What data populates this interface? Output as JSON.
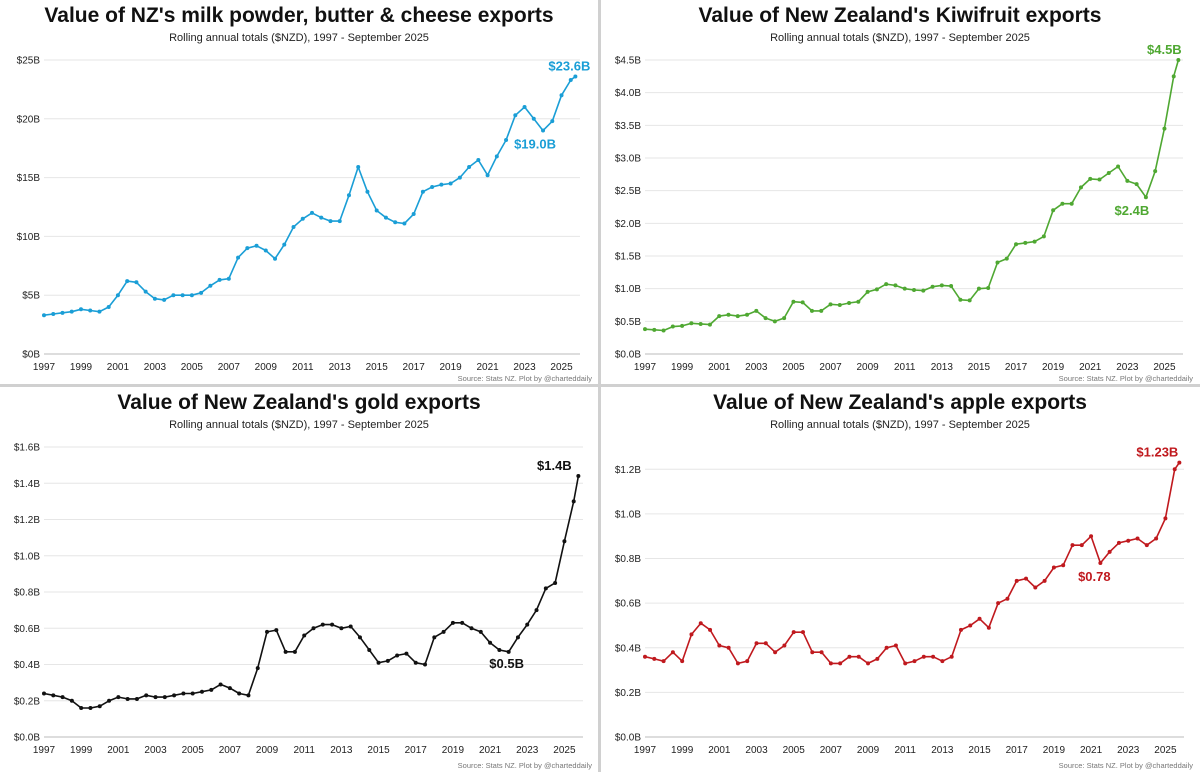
{
  "source_note": "Source: Stats NZ.  Plot by @charteddaily",
  "chart_data": [
    {
      "type": "line",
      "title": "Value of NZ's milk powder, butter & cheese exports",
      "subtitle": "Rolling annual totals ($NZD), 1997 - September 2025",
      "color": "#1a9ed6",
      "xlim": [
        1997,
        2026
      ],
      "ylim": [
        0,
        25
      ],
      "yticks": [
        0,
        5,
        10,
        15,
        20,
        25
      ],
      "ytick_labels": [
        "$0B",
        "$5B",
        "$10B",
        "$15B",
        "$20B",
        "$25B"
      ],
      "xtick_labels": [
        "1997",
        "1999",
        "2001",
        "2003",
        "2005",
        "2007",
        "2009",
        "2011",
        "2013",
        "2015",
        "2017",
        "2019",
        "2021",
        "2023",
        "2025"
      ],
      "x": [
        1997.0,
        1997.5,
        1998.0,
        1998.5,
        1999.0,
        1999.5,
        2000.0,
        2000.5,
        2001.0,
        2001.5,
        2002.0,
        2002.5,
        2003.0,
        2003.5,
        2004.0,
        2004.5,
        2005.0,
        2005.5,
        2006.0,
        2006.5,
        2007.0,
        2007.5,
        2008.0,
        2008.5,
        2009.0,
        2009.5,
        2010.0,
        2010.5,
        2011.0,
        2011.5,
        2012.0,
        2012.5,
        2013.0,
        2013.5,
        2014.0,
        2014.5,
        2015.0,
        2015.5,
        2016.0,
        2016.5,
        2017.0,
        2017.5,
        2018.0,
        2018.5,
        2019.0,
        2019.5,
        2020.0,
        2020.5,
        2021.0,
        2021.5,
        2022.0,
        2022.5,
        2023.0,
        2023.5,
        2024.0,
        2024.5,
        2025.0,
        2025.5,
        2025.75
      ],
      "values": [
        3.3,
        3.4,
        3.5,
        3.6,
        3.8,
        3.7,
        3.6,
        4.0,
        5.0,
        6.2,
        6.1,
        5.3,
        4.7,
        4.6,
        5.0,
        5.0,
        5.0,
        5.2,
        5.8,
        6.3,
        6.4,
        8.2,
        9.0,
        9.2,
        8.8,
        8.1,
        9.3,
        10.8,
        11.5,
        12.0,
        11.6,
        11.3,
        11.3,
        13.5,
        15.9,
        13.8,
        12.2,
        11.6,
        11.2,
        11.1,
        11.9,
        13.8,
        14.2,
        14.4,
        14.5,
        15.0,
        15.9,
        16.5,
        15.2,
        16.8,
        18.2,
        20.3,
        21.0,
        20.0,
        19.0,
        19.8,
        22.0,
        23.3,
        23.6
      ],
      "annotations": [
        {
          "text": "$23.6B",
          "x": 2025.75,
          "y": 23.6
        },
        {
          "text": "$19.0B",
          "x": 2024.0,
          "y": 19.0
        }
      ]
    },
    {
      "type": "line",
      "title": "Value of New Zealand's Kiwifruit exports",
      "subtitle": "Rolling annual totals ($NZD), 1997 - September  2025",
      "color": "#4fa832",
      "xlim": [
        1997,
        2026
      ],
      "ylim": [
        0,
        4.5
      ],
      "yticks": [
        0,
        0.5,
        1.0,
        1.5,
        2.0,
        2.5,
        3.0,
        3.5,
        4.0,
        4.5
      ],
      "ytick_labels": [
        "$0.0B",
        "$0.5B",
        "$1.0B",
        "$1.5B",
        "$2.0B",
        "$2.5B",
        "$3.0B",
        "$3.5B",
        "$4.0B",
        "$4.5B"
      ],
      "xtick_labels": [
        "1997",
        "1999",
        "2001",
        "2003",
        "2005",
        "2007",
        "2009",
        "2011",
        "2013",
        "2015",
        "2017",
        "2019",
        "2021",
        "2023",
        "2025"
      ],
      "x": [
        1997.0,
        1997.5,
        1998.0,
        1998.5,
        1999.0,
        1999.5,
        2000.0,
        2000.5,
        2001.0,
        2001.5,
        2002.0,
        2002.5,
        2003.0,
        2003.5,
        2004.0,
        2004.5,
        2005.0,
        2005.5,
        2006.0,
        2006.5,
        2007.0,
        2007.5,
        2008.0,
        2008.5,
        2009.0,
        2009.5,
        2010.0,
        2010.5,
        2011.0,
        2011.5,
        2012.0,
        2012.5,
        2013.0,
        2013.5,
        2014.0,
        2014.5,
        2015.0,
        2015.5,
        2016.0,
        2016.5,
        2017.0,
        2017.5,
        2018.0,
        2018.5,
        2019.0,
        2019.5,
        2020.0,
        2020.5,
        2021.0,
        2021.5,
        2022.0,
        2022.5,
        2023.0,
        2023.5,
        2024.0,
        2024.5,
        2025.0,
        2025.5,
        2025.75
      ],
      "values": [
        0.38,
        0.37,
        0.36,
        0.42,
        0.43,
        0.47,
        0.46,
        0.45,
        0.58,
        0.6,
        0.58,
        0.6,
        0.66,
        0.55,
        0.5,
        0.55,
        0.8,
        0.79,
        0.66,
        0.66,
        0.76,
        0.75,
        0.78,
        0.8,
        0.95,
        0.99,
        1.07,
        1.05,
        1.0,
        0.98,
        0.97,
        1.03,
        1.05,
        1.04,
        0.83,
        0.82,
        1.0,
        1.01,
        1.4,
        1.46,
        1.68,
        1.7,
        1.72,
        1.8,
        2.2,
        2.3,
        2.3,
        2.55,
        2.68,
        2.67,
        2.77,
        2.87,
        2.65,
        2.6,
        2.4,
        2.8,
        3.45,
        4.25,
        4.5
      ],
      "annotations": [
        {
          "text": "$4.5B",
          "x": 2025.75,
          "y": 4.5
        },
        {
          "text": "$2.4B",
          "x": 2024.0,
          "y": 2.4
        }
      ]
    },
    {
      "type": "line",
      "title": "Value of New Zealand's gold exports",
      "subtitle": "Rolling annual totals ($NZD), 1997 - September 2025",
      "color": "#111111",
      "xlim": [
        1997,
        2026
      ],
      "ylim": [
        0,
        1.6
      ],
      "yticks": [
        0,
        0.2,
        0.4,
        0.6,
        0.8,
        1.0,
        1.2,
        1.4,
        1.6
      ],
      "ytick_labels": [
        "$0.0B",
        "$0.2B",
        "$0.4B",
        "$0.6B",
        "$0.8B",
        "$1.0B",
        "$1.2B",
        "$1.4B",
        "$1.6B"
      ],
      "xtick_labels": [
        "1997",
        "1999",
        "2001",
        "2003",
        "2005",
        "2007",
        "2009",
        "2011",
        "2013",
        "2015",
        "2017",
        "2019",
        "2021",
        "2023",
        "2025"
      ],
      "x": [
        1997.0,
        1997.5,
        1998.0,
        1998.5,
        1999.0,
        1999.5,
        2000.0,
        2000.5,
        2001.0,
        2001.5,
        2002.0,
        2002.5,
        2003.0,
        2003.5,
        2004.0,
        2004.5,
        2005.0,
        2005.5,
        2006.0,
        2006.5,
        2007.0,
        2007.5,
        2008.0,
        2008.5,
        2009.0,
        2009.5,
        2010.0,
        2010.5,
        2011.0,
        2011.5,
        2012.0,
        2012.5,
        2013.0,
        2013.5,
        2014.0,
        2014.5,
        2015.0,
        2015.5,
        2016.0,
        2016.5,
        2017.0,
        2017.5,
        2018.0,
        2018.5,
        2019.0,
        2019.5,
        2020.0,
        2020.5,
        2021.0,
        2021.5,
        2022.0,
        2022.5,
        2023.0,
        2023.5,
        2024.0,
        2024.5,
        2025.0,
        2025.5,
        2025.75
      ],
      "values": [
        0.24,
        0.23,
        0.22,
        0.2,
        0.16,
        0.16,
        0.17,
        0.2,
        0.22,
        0.21,
        0.21,
        0.23,
        0.22,
        0.22,
        0.23,
        0.24,
        0.24,
        0.25,
        0.26,
        0.29,
        0.27,
        0.24,
        0.23,
        0.38,
        0.58,
        0.59,
        0.47,
        0.47,
        0.56,
        0.6,
        0.62,
        0.62,
        0.6,
        0.61,
        0.55,
        0.48,
        0.41,
        0.42,
        0.45,
        0.46,
        0.41,
        0.4,
        0.55,
        0.58,
        0.63,
        0.63,
        0.6,
        0.58,
        0.52,
        0.48,
        0.47,
        0.55,
        0.62,
        0.7,
        0.82,
        0.85,
        1.08,
        1.3,
        1.44
      ],
      "annotations": [
        {
          "text": "$1.4B",
          "x": 2025.75,
          "y": 1.44
        },
        {
          "text": "$0.5B",
          "x": 2022.0,
          "y": 0.47
        }
      ]
    },
    {
      "type": "line",
      "title": "Value of New Zealand's apple exports",
      "subtitle": "Rolling annual totals ($NZD), 1997 - September 2025",
      "color": "#c0191e",
      "xlim": [
        1997,
        2026
      ],
      "ylim": [
        0,
        1.3
      ],
      "yticks": [
        0,
        0.2,
        0.4,
        0.6,
        0.8,
        1.0,
        1.2
      ],
      "ytick_labels": [
        "$0.0B",
        "$0.2B",
        "$0.4B",
        "$0.6B",
        "$0.8B",
        "$1.0B",
        "$1.2B"
      ],
      "xtick_labels": [
        "1997",
        "1999",
        "2001",
        "2003",
        "2005",
        "2007",
        "2009",
        "2011",
        "2013",
        "2015",
        "2017",
        "2019",
        "2021",
        "2023",
        "2025"
      ],
      "x": [
        1997.0,
        1997.5,
        1998.0,
        1998.5,
        1999.0,
        1999.5,
        2000.0,
        2000.5,
        2001.0,
        2001.5,
        2002.0,
        2002.5,
        2003.0,
        2003.5,
        2004.0,
        2004.5,
        2005.0,
        2005.5,
        2006.0,
        2006.5,
        2007.0,
        2007.5,
        2008.0,
        2008.5,
        2009.0,
        2009.5,
        2010.0,
        2010.5,
        2011.0,
        2011.5,
        2012.0,
        2012.5,
        2013.0,
        2013.5,
        2014.0,
        2014.5,
        2015.0,
        2015.5,
        2016.0,
        2016.5,
        2017.0,
        2017.5,
        2018.0,
        2018.5,
        2019.0,
        2019.5,
        2020.0,
        2020.5,
        2021.0,
        2021.5,
        2022.0,
        2022.5,
        2023.0,
        2023.5,
        2024.0,
        2024.5,
        2025.0,
        2025.5,
        2025.75
      ],
      "values": [
        0.36,
        0.35,
        0.34,
        0.38,
        0.34,
        0.46,
        0.51,
        0.48,
        0.41,
        0.4,
        0.33,
        0.34,
        0.42,
        0.42,
        0.38,
        0.41,
        0.47,
        0.47,
        0.38,
        0.38,
        0.33,
        0.33,
        0.36,
        0.36,
        0.33,
        0.35,
        0.4,
        0.41,
        0.33,
        0.34,
        0.36,
        0.36,
        0.34,
        0.36,
        0.48,
        0.5,
        0.53,
        0.49,
        0.6,
        0.62,
        0.7,
        0.71,
        0.67,
        0.7,
        0.76,
        0.77,
        0.86,
        0.86,
        0.9,
        0.78,
        0.83,
        0.87,
        0.88,
        0.89,
        0.86,
        0.89,
        0.98,
        1.2,
        1.23
      ],
      "annotations": [
        {
          "text": "$1.23B",
          "x": 2025.75,
          "y": 1.23
        },
        {
          "text": "$0.78",
          "x": 2021.5,
          "y": 0.78
        }
      ]
    }
  ]
}
